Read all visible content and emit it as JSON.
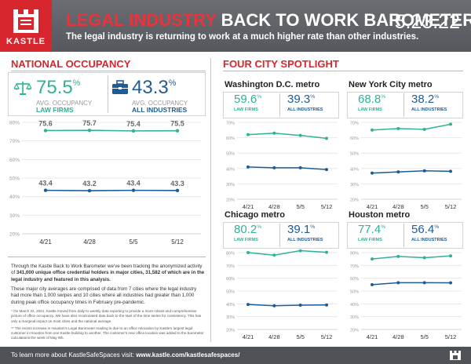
{
  "header": {
    "logo_text": "KASTLE",
    "title_red": "LEGAL INDUSTRY",
    "title_rest": " BACK TO WORK BAROMETER",
    "subtitle": "The legal industry is returning to work at a much higher rate than other industries.",
    "date": "5.23.22"
  },
  "national": {
    "heading": "NATIONAL OCCUPANCY",
    "law": {
      "value": "75.5",
      "pct": "%",
      "label1": "AVG. OCCUPANCY",
      "label2": "LAW FIRMS"
    },
    "all": {
      "value": "43.3",
      "pct": "%",
      "label1": "AVG. OCCUPANCY",
      "label2": "ALL INDUSTRIES"
    }
  },
  "four_city": {
    "heading": "FOUR CITY SPOTLIGHT",
    "law_label": "LAW FIRMS",
    "all_label": "ALL INDUSTRIES"
  },
  "colors": {
    "law": "#2fb296",
    "all": "#1e5c96",
    "brand_red": "#d7262e"
  },
  "chart_data": [
    {
      "id": "national",
      "type": "line",
      "title": "NATIONAL OCCUPANCY",
      "categories": [
        "4/21",
        "4/28",
        "5/5",
        "5/12"
      ],
      "ylim": [
        20,
        80
      ],
      "yticks": [
        "20%",
        "30%",
        "40%",
        "50%",
        "60%",
        "70%",
        "80%"
      ],
      "series": [
        {
          "name": "LAW FIRMS",
          "values": [
            75.6,
            75.7,
            75.4,
            75.5
          ],
          "labels": [
            "75.6",
            "75.7",
            "75.4",
            "75.5"
          ]
        },
        {
          "name": "ALL INDUSTRIES",
          "values": [
            43.4,
            43.2,
            43.4,
            43.3
          ],
          "labels": [
            "43.4",
            "43.2",
            "43.4",
            "43.3"
          ]
        }
      ]
    },
    {
      "id": "dc",
      "type": "line",
      "title": "Washington D.C. metro",
      "law_value": "59.6",
      "all_value": "39.3",
      "categories": [
        "4/21",
        "4/28",
        "5/5",
        "5/12"
      ],
      "ylim": [
        20,
        70
      ],
      "yticks": [
        "20%",
        "30%",
        "40%",
        "50%",
        "60%",
        "70%"
      ],
      "series": [
        {
          "name": "LAW FIRMS",
          "values": [
            62.0,
            63.0,
            61.5,
            59.6
          ]
        },
        {
          "name": "ALL INDUSTRIES",
          "values": [
            41.0,
            40.5,
            40.5,
            39.3
          ]
        }
      ]
    },
    {
      "id": "nyc",
      "type": "line",
      "title": "New York City metro",
      "law_value": "68.8",
      "all_value": "38.2",
      "categories": [
        "4/21",
        "4/28",
        "5/5",
        "5/12"
      ],
      "ylim": [
        20,
        70
      ],
      "yticks": [
        "20%",
        "30%",
        "40%",
        "50%",
        "60%",
        "70%"
      ],
      "series": [
        {
          "name": "LAW FIRMS",
          "values": [
            65.0,
            66.0,
            65.5,
            68.8
          ]
        },
        {
          "name": "ALL INDUSTRIES",
          "values": [
            37.0,
            37.8,
            38.5,
            38.2
          ]
        }
      ]
    },
    {
      "id": "chicago",
      "type": "line",
      "title": "Chicago metro",
      "law_value": "80.2",
      "all_value": "39.1",
      "categories": [
        "4/21",
        "4/28",
        "5/5",
        "5/12"
      ],
      "ylim": [
        20,
        80
      ],
      "yticks": [
        "20%",
        "30%",
        "40%",
        "50%",
        "60%",
        "70%",
        "80%"
      ],
      "series": [
        {
          "name": "LAW FIRMS",
          "values": [
            80.0,
            78.0,
            81.5,
            80.2
          ]
        },
        {
          "name": "ALL INDUSTRIES",
          "values": [
            39.5,
            38.5,
            39.0,
            39.1
          ]
        }
      ]
    },
    {
      "id": "houston",
      "type": "line",
      "title": "Houston metro",
      "law_value": "77.4",
      "all_value": "56.4",
      "categories": [
        "4/21",
        "4/28",
        "5/5",
        "5/12"
      ],
      "ylim": [
        20,
        80
      ],
      "yticks": [
        "20%",
        "30%",
        "40%",
        "50%",
        "60%",
        "70%",
        "80%"
      ],
      "series": [
        {
          "name": "LAW FIRMS",
          "values": [
            75.0,
            77.0,
            76.0,
            77.4
          ]
        },
        {
          "name": "ALL INDUSTRIES",
          "values": [
            55.0,
            56.5,
            56.5,
            56.4
          ]
        }
      ]
    }
  ],
  "notes": {
    "p1_a": "Through the Kastle Back to Work Barometer we've been tracking the anonymized activity of ",
    "p1_b": "341,000 unique office credential holders in major cities, 31,582 of which are in the legal industry and featured in this analysis.",
    "p2": "These major city averages are comprised of data from 7 cities where the legal industry had more than 1,000 swipes and 10 cities where all industries had greater than 1,000 during peak office occupancy times in February pre-pandemic.",
    "p3": "* On March 22, 2021, Kastle moved from daily to weekly data reporting to provide a more robust and comprehensive picture of office occupancy. We have also recalculated data back to the start of the time series for consistency. This has only a marginal impact on most cities and the national average.",
    "p4": "** The recent increase in Houston's Legal Barometer reading is due to an office relocation by Kastle's largest legal customer in Houston from one Kastle building to another. The customer's new office location was added to the barometer calculations the week of May 9th."
  },
  "footer": {
    "text": "To learn more about KastleSafeSpaces visit: ",
    "link": "www.kastle.com/kastlesafespaces/"
  }
}
